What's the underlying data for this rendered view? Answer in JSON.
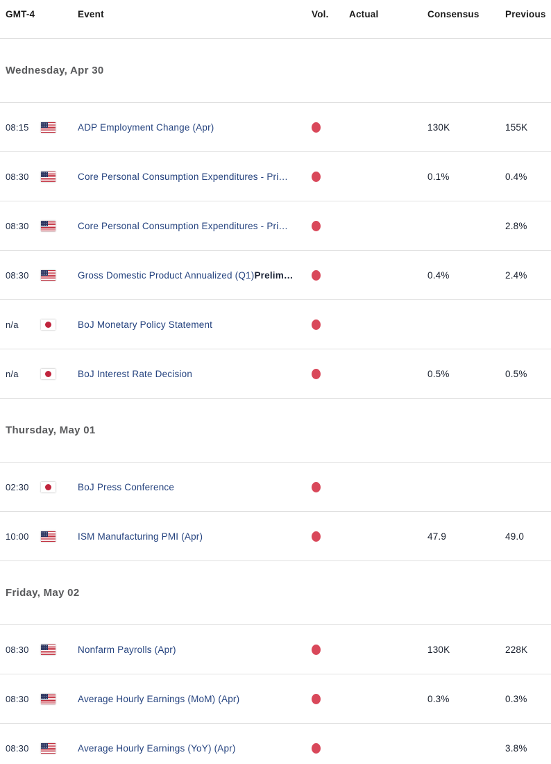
{
  "table": {
    "columns": [
      "GMT-4",
      "Event",
      "Vol.",
      "Actual",
      "Consensus",
      "Previous"
    ]
  },
  "colors": {
    "event_link": "#25437f",
    "volatility_high_dot": "#d9485a",
    "japan_flag_red": "#c0243c",
    "us_flag_blue": "#2c3560",
    "us_flag_red": "#c22f3e",
    "section_header_text": "#58595b",
    "row_border": "#e0e0e0"
  },
  "sections": [
    {
      "date": "Wednesday, Apr 30",
      "rows": [
        {
          "time": "08:15",
          "country": "us",
          "event": "ADP Employment Change (Apr)",
          "event_bold": "",
          "volatility": "high",
          "actual": "",
          "consensus": "130K",
          "previous": "155K"
        },
        {
          "time": "08:30",
          "country": "us",
          "event": "Core Personal Consumption Expenditures - Pri…",
          "event_bold": "",
          "volatility": "high",
          "actual": "",
          "consensus": "0.1%",
          "previous": "0.4%"
        },
        {
          "time": "08:30",
          "country": "us",
          "event": "Core Personal Consumption Expenditures - Pri…",
          "event_bold": "",
          "volatility": "high",
          "actual": "",
          "consensus": "",
          "previous": "2.8%"
        },
        {
          "time": "08:30",
          "country": "us",
          "event": "Gross Domestic Product Annualized (Q1)",
          "event_bold": "Prelim…",
          "volatility": "high",
          "actual": "",
          "consensus": "0.4%",
          "previous": "2.4%"
        },
        {
          "time": "n/a",
          "country": "jp",
          "event": "BoJ Monetary Policy Statement",
          "event_bold": "",
          "volatility": "high",
          "actual": "",
          "consensus": "",
          "previous": ""
        },
        {
          "time": "n/a",
          "country": "jp",
          "event": "BoJ Interest Rate Decision",
          "event_bold": "",
          "volatility": "high",
          "actual": "",
          "consensus": "0.5%",
          "previous": "0.5%"
        }
      ]
    },
    {
      "date": "Thursday, May 01",
      "rows": [
        {
          "time": "02:30",
          "country": "jp",
          "event": "BoJ Press Conference",
          "event_bold": "",
          "volatility": "high",
          "actual": "",
          "consensus": "",
          "previous": ""
        },
        {
          "time": "10:00",
          "country": "us",
          "event": "ISM Manufacturing PMI (Apr)",
          "event_bold": "",
          "volatility": "high",
          "actual": "",
          "consensus": "47.9",
          "previous": "49.0"
        }
      ]
    },
    {
      "date": "Friday, May 02",
      "rows": [
        {
          "time": "08:30",
          "country": "us",
          "event": "Nonfarm Payrolls (Apr)",
          "event_bold": "",
          "volatility": "high",
          "actual": "",
          "consensus": "130K",
          "previous": "228K"
        },
        {
          "time": "08:30",
          "country": "us",
          "event": "Average Hourly Earnings (MoM) (Apr)",
          "event_bold": "",
          "volatility": "high",
          "actual": "",
          "consensus": "0.3%",
          "previous": "0.3%"
        },
        {
          "time": "08:30",
          "country": "us",
          "event": "Average Hourly Earnings (YoY) (Apr)",
          "event_bold": "",
          "volatility": "high",
          "actual": "",
          "consensus": "",
          "previous": "3.8%"
        }
      ]
    }
  ]
}
